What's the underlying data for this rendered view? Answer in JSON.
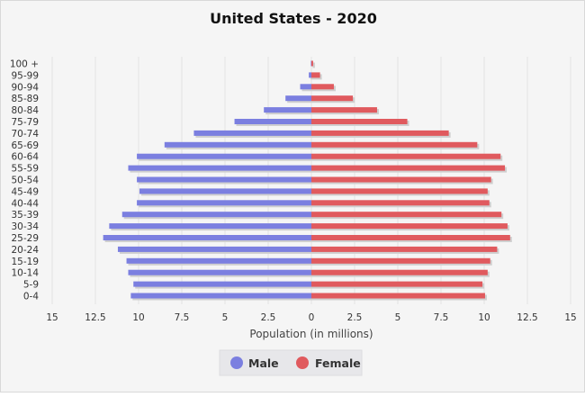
{
  "chart_data": {
    "type": "bar",
    "orientation": "horizontal-diverging",
    "title": "United States - 2020",
    "xlabel": "Population (in millions)",
    "ylabel": "",
    "xlim": [
      -15,
      15
    ],
    "x_ticks": [
      -15,
      -12.5,
      -10,
      -7.5,
      -5,
      -2.5,
      0,
      2.5,
      5,
      7.5,
      10,
      12.5,
      15
    ],
    "x_tick_labels": [
      "15",
      "12.5",
      "10",
      "7.5",
      "5",
      "2.5",
      "0",
      "2.5",
      "5",
      "7.5",
      "10",
      "12.5",
      "15"
    ],
    "categories": [
      "100 +",
      "95-99",
      "90-94",
      "85-89",
      "80-84",
      "75-79",
      "70-74",
      "65-69",
      "60-64",
      "55-59",
      "50-54",
      "45-49",
      "40-44",
      "35-39",
      "30-34",
      "25-29",
      "20-24",
      "15-19",
      "10-14",
      "5-9",
      "0-4"
    ],
    "series": [
      {
        "name": "Male",
        "color": "#7b7fe0",
        "values": [
          0.03,
          0.15,
          0.65,
          1.5,
          2.75,
          4.45,
          6.8,
          8.5,
          10.1,
          10.6,
          10.1,
          9.95,
          10.1,
          10.95,
          11.7,
          12.05,
          11.2,
          10.7,
          10.6,
          10.3,
          10.45
        ]
      },
      {
        "name": "Female",
        "color": "#e05a5e",
        "values": [
          0.1,
          0.5,
          1.3,
          2.4,
          3.8,
          5.55,
          7.95,
          9.6,
          10.95,
          11.2,
          10.4,
          10.2,
          10.3,
          11.0,
          11.35,
          11.5,
          10.75,
          10.35,
          10.2,
          9.9,
          10.05
        ]
      }
    ],
    "grid": true,
    "legend_position": "bottom"
  }
}
